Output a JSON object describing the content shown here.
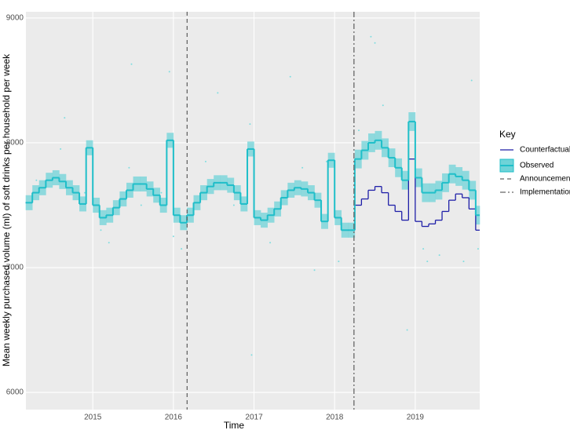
{
  "chart_data": {
    "type": "step",
    "x_label": "Time",
    "y_label": "Mean weekly purchased volume (ml) of soft drinks per household per week",
    "xlim": [
      2014.17,
      2019.8
    ],
    "xticks": [
      2015,
      2016,
      2017,
      2018,
      2019
    ],
    "ylim": [
      5862,
      9050
    ],
    "yticks": [
      6000,
      7000,
      8000,
      9000
    ],
    "grid": true,
    "legend_title": "Key",
    "x": [
      2014.167,
      2014.25,
      2014.333,
      2014.417,
      2014.5,
      2014.583,
      2014.667,
      2014.75,
      2014.833,
      2014.917,
      2015,
      2015.083,
      2015.167,
      2015.25,
      2015.333,
      2015.417,
      2015.5,
      2015.583,
      2015.667,
      2015.75,
      2015.833,
      2015.917,
      2016,
      2016.083,
      2016.167,
      2016.25,
      2016.333,
      2016.417,
      2016.5,
      2016.583,
      2016.667,
      2016.75,
      2016.833,
      2016.917,
      2017,
      2017.083,
      2017.167,
      2017.25,
      2017.333,
      2017.417,
      2017.5,
      2017.583,
      2017.667,
      2017.75,
      2017.833,
      2017.917,
      2018,
      2018.083,
      2018.167,
      2018.25,
      2018.333,
      2018.417,
      2018.5,
      2018.583,
      2018.667,
      2018.75,
      2018.833,
      2018.917,
      2019,
      2019.083,
      2019.167,
      2019.25,
      2019.333,
      2019.417,
      2019.5,
      2019.583,
      2019.667,
      2019.75
    ],
    "series": [
      {
        "name": "Observed",
        "color": "#1fbfc9",
        "ribbon_color": "#6fd3d8",
        "values": [
          7520,
          7600,
          7640,
          7700,
          7720,
          7690,
          7640,
          7600,
          7510,
          7960,
          7500,
          7400,
          7420,
          7480,
          7550,
          7620,
          7670,
          7670,
          7630,
          7580,
          7500,
          8020,
          7420,
          7360,
          7420,
          7520,
          7600,
          7650,
          7680,
          7680,
          7660,
          7600,
          7510,
          7950,
          7400,
          7380,
          7420,
          7470,
          7560,
          7620,
          7640,
          7630,
          7600,
          7540,
          7370,
          7860,
          7400,
          7300,
          7300,
          7870,
          7940,
          8000,
          8020,
          7960,
          7880,
          7800,
          7700,
          8170,
          7720,
          7600,
          7600,
          7620,
          7680,
          7750,
          7730,
          7700,
          7620,
          7420
        ],
        "lower": [
          7460,
          7540,
          7580,
          7640,
          7660,
          7630,
          7580,
          7540,
          7450,
          7900,
          7440,
          7340,
          7360,
          7420,
          7490,
          7560,
          7610,
          7610,
          7570,
          7520,
          7440,
          7960,
          7360,
          7300,
          7360,
          7460,
          7540,
          7590,
          7620,
          7620,
          7600,
          7540,
          7450,
          7890,
          7340,
          7320,
          7360,
          7410,
          7500,
          7560,
          7580,
          7570,
          7540,
          7480,
          7310,
          7800,
          7340,
          7240,
          7240,
          7795,
          7865,
          7925,
          7945,
          7885,
          7805,
          7725,
          7625,
          8095,
          7645,
          7525,
          7525,
          7545,
          7605,
          7675,
          7655,
          7625,
          7545,
          7345
        ],
        "upper": [
          7580,
          7660,
          7700,
          7760,
          7780,
          7750,
          7700,
          7660,
          7570,
          8020,
          7560,
          7460,
          7480,
          7540,
          7610,
          7680,
          7730,
          7730,
          7690,
          7640,
          7560,
          8080,
          7480,
          7420,
          7480,
          7580,
          7660,
          7710,
          7740,
          7740,
          7720,
          7660,
          7570,
          8010,
          7460,
          7440,
          7480,
          7530,
          7620,
          7680,
          7700,
          7690,
          7660,
          7600,
          7430,
          7920,
          7460,
          7360,
          7360,
          7945,
          8015,
          8075,
          8095,
          8035,
          7955,
          7875,
          7775,
          8245,
          7795,
          7675,
          7675,
          7695,
          7755,
          7825,
          7805,
          7775,
          7695,
          7495
        ]
      },
      {
        "name": "Counterfactual",
        "color": "#1f1fa8",
        "values": [
          7520,
          7600,
          7640,
          7700,
          7720,
          7690,
          7640,
          7600,
          7510,
          7960,
          7500,
          7400,
          7420,
          7480,
          7550,
          7620,
          7670,
          7670,
          7630,
          7580,
          7500,
          8020,
          7420,
          7360,
          7420,
          7520,
          7600,
          7650,
          7680,
          7680,
          7660,
          7600,
          7510,
          7950,
          7400,
          7380,
          7420,
          7470,
          7560,
          7620,
          7640,
          7630,
          7600,
          7540,
          7370,
          7860,
          7400,
          7300,
          7300,
          7500,
          7550,
          7620,
          7650,
          7600,
          7500,
          7450,
          7380,
          7870,
          7370,
          7330,
          7350,
          7380,
          7450,
          7540,
          7590,
          7560,
          7470,
          7300
        ]
      }
    ],
    "scatter": {
      "color": "#7fdde0",
      "x": [
        2014.3,
        2014.6,
        2014.65,
        2014.9,
        2015.1,
        2015.2,
        2015.45,
        2015.48,
        2015.6,
        2015.85,
        2015.95,
        2016.0,
        2016.1,
        2016.4,
        2016.55,
        2016.75,
        2016.95,
        2016.97,
        2017.2,
        2017.45,
        2017.6,
        2017.75,
        2017.9,
        2018.05,
        2018.3,
        2018.45,
        2018.5,
        2018.6,
        2018.9,
        2019.1,
        2019.15,
        2019.3,
        2019.6,
        2019.7,
        2019.78
      ],
      "y": [
        7700,
        7950,
        8200,
        7600,
        7300,
        7200,
        7800,
        8630,
        7500,
        7600,
        8570,
        7250,
        7150,
        7850,
        8400,
        7500,
        8150,
        6300,
        7200,
        8530,
        7800,
        6980,
        7850,
        7050,
        8100,
        8850,
        8800,
        8300,
        6500,
        7150,
        7050,
        7100,
        7050,
        8500,
        7150
      ]
    },
    "vlines": [
      {
        "name": "Announcement",
        "x": 2016.17,
        "dash": "dashed"
      },
      {
        "name": "Implementation",
        "x": 2018.24,
        "dash": "dotdash"
      }
    ]
  }
}
